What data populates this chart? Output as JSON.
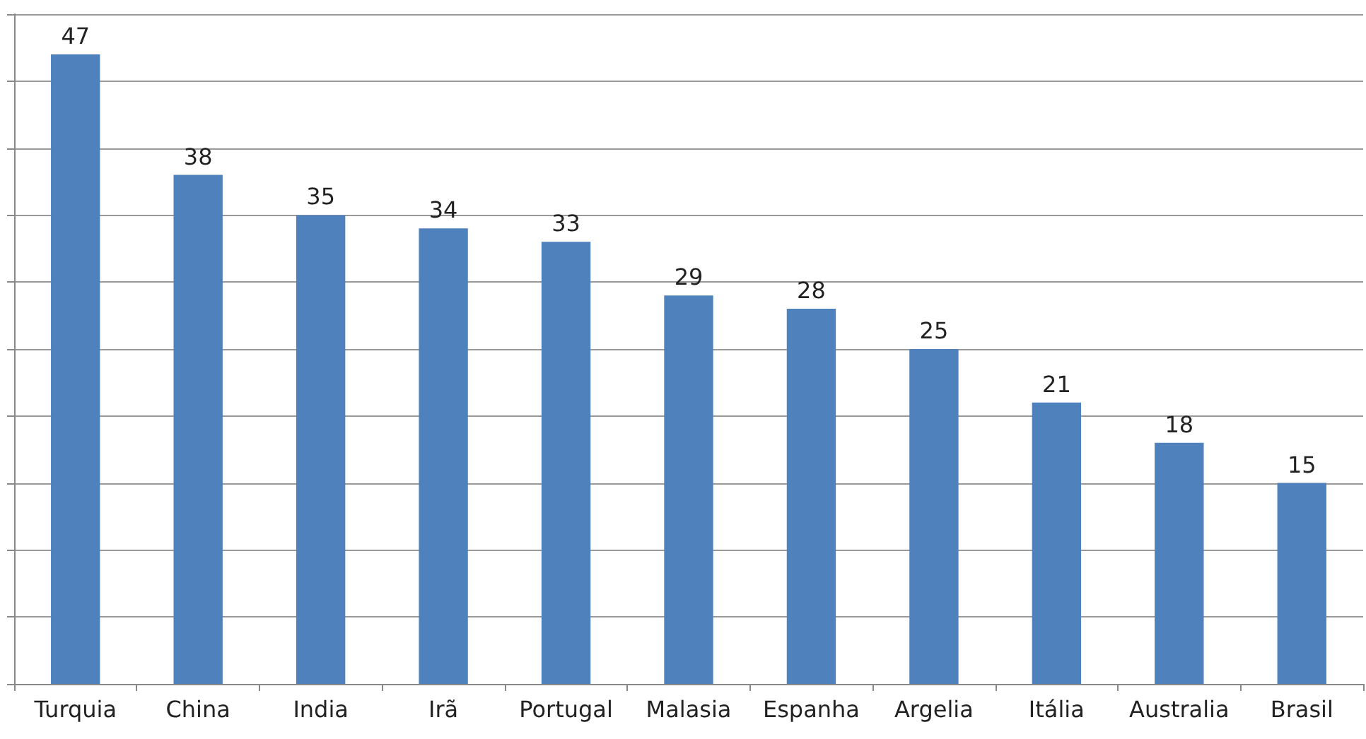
{
  "chart_data": {
    "type": "bar",
    "categories": [
      "Turquia",
      "China",
      "India",
      "Irã",
      "Portugal",
      "Malasia",
      "Espanha",
      "Argelia",
      "Itália",
      "Australia",
      "Brasil"
    ],
    "values": [
      47,
      38,
      35,
      34,
      33,
      29,
      28,
      25,
      21,
      18,
      15
    ],
    "color": "#4f81bd",
    "ylim": [
      0,
      50
    ],
    "yticks": [
      {
        "value": 0,
        "label": null
      },
      {
        "value": 5,
        "label": null
      },
      {
        "value": 10,
        "label": null
      },
      {
        "value": 15,
        "label": null
      },
      {
        "value": 20,
        "label": null
      },
      {
        "value": 25,
        "label": null
      },
      {
        "value": 30,
        "label": null
      },
      {
        "value": 35,
        "label": null
      },
      {
        "value": 40,
        "label": null
      },
      {
        "value": 45,
        "label": null
      },
      {
        "value": 50,
        "label": null
      }
    ],
    "tick_labels": "x",
    "grid": "y",
    "data_labels": true
  }
}
